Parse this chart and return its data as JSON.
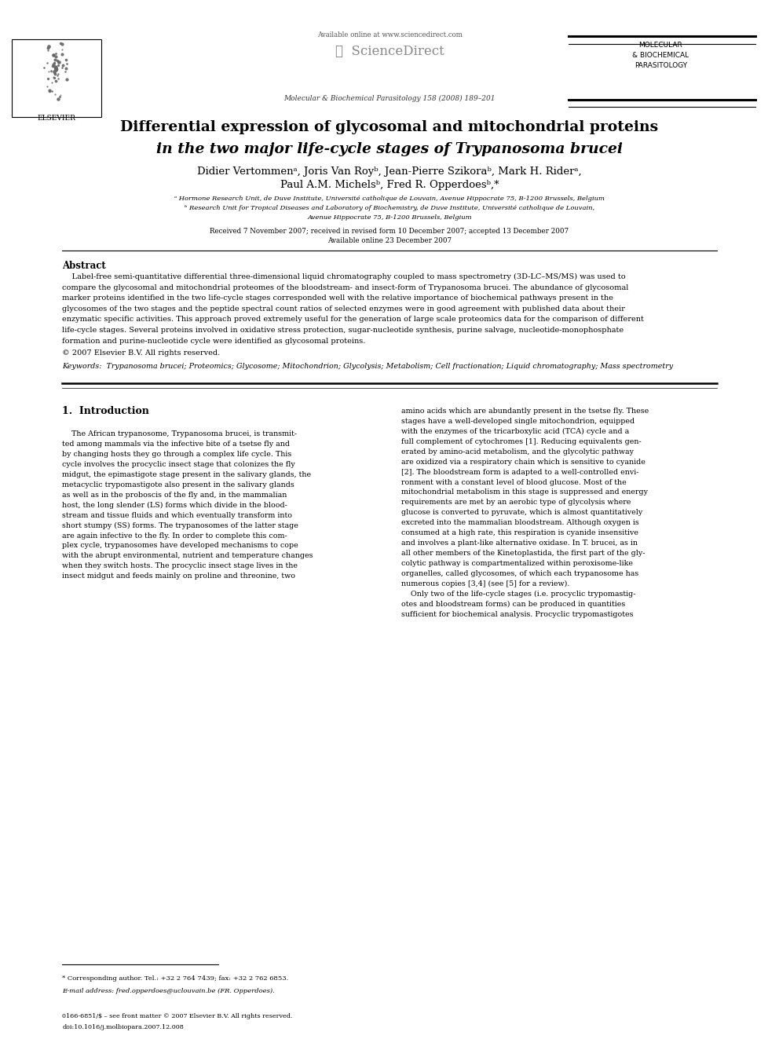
{
  "background_color": "#ffffff",
  "page_width": 9.92,
  "page_height": 13.23,
  "header": {
    "available_online": "Available online at www.sciencedirect.com",
    "sciencedirect": "❧  ScienceDirect",
    "journal_name": "Molecular & Biochemical Parasitology 158 (2008) 189–201",
    "elsevier": "ELSEVIER",
    "mbp_line1": "MOLECULAR",
    "mbp_line2": "& BIOCHEMICAL",
    "mbp_line3": "PARASITOLOGY"
  },
  "title_line1": "Differential expression of glycosomal and mitochondrial proteins",
  "title_line2_normal": "in the two major life-cycle stages of ",
  "title_line2_italic": "Trypanosoma brucei",
  "authors_line1": "Didier Vertommenᵃ, Joris Van Royᵇ, Jean-Pierre Szikoraᵇ, Mark H. Riderᵃ,",
  "authors_line2": "Paul A.M. Michelsᵇ, Fred R. Opperdoesᵇ,*",
  "affil_a": "ᵃ Hormone Research Unit, de Duve Institute, Université catholique de Louvain, Avenue Hippocrate 75, B-1200 Brussels, Belgium",
  "affil_b_line1": "ᵇ Research Unit for Tropical Diseases and Laboratory of Biochemistry, de Duve Institute, Université catholique de Louvain,",
  "affil_b_line2": "Avenue Hippocrate 75, B-1200 Brussels, Belgium",
  "received": "Received 7 November 2007; received in revised form 10 December 2007; accepted 13 December 2007",
  "available_online2": "Available online 23 December 2007",
  "abstract_title": "Abstract",
  "abstract_lines": [
    "    Label-free semi-quantitative differential three-dimensional liquid chromatography coupled to mass spectrometry (3D-LC–MS/MS) was used to",
    "compare the glycosomal and mitochondrial proteomes of the bloodstream- and insect-form of Trypanosoma brucei. The abundance of glycosomal",
    "marker proteins identified in the two life-cycle stages corresponded well with the relative importance of biochemical pathways present in the",
    "glycosomes of the two stages and the peptide spectral count ratios of selected enzymes were in good agreement with published data about their",
    "enzymatic specific activities. This approach proved extremely useful for the generation of large scale proteomics data for the comparison of different",
    "life-cycle stages. Several proteins involved in oxidative stress protection, sugar-nucleotide synthesis, purine salvage, nucleotide-monophosphate",
    "formation and purine-nucleotide cycle were identified as glycosomal proteins."
  ],
  "copyright": "© 2007 Elsevier B.V. All rights reserved.",
  "keywords": "Keywords:  Trypanosoma brucei; Proteomics; Glycosome; Mitochondrion; Glycolysis; Metabolism; Cell fractionation; Liquid chromatography; Mass spectrometry",
  "section1_title": "1.  Introduction",
  "col1_lines": [
    "    The African trypanosome, Trypanosoma brucei, is transmit-",
    "ted among mammals via the infective bite of a tsetse fly and",
    "by changing hosts they go through a complex life cycle. This",
    "cycle involves the procyclic insect stage that colonizes the fly",
    "midgut, the epimastigote stage present in the salivary glands, the",
    "metacyclic trypomastigote also present in the salivary glands",
    "as well as in the proboscis of the fly and, in the mammalian",
    "host, the long slender (LS) forms which divide in the blood-",
    "stream and tissue fluids and which eventually transform into",
    "short stumpy (SS) forms. The trypanosomes of the latter stage",
    "are again infective to the fly. In order to complete this com-",
    "plex cycle, trypanosomes have developed mechanisms to cope",
    "with the abrupt environmental, nutrient and temperature changes",
    "when they switch hosts. The procyclic insect stage lives in the",
    "insect midgut and feeds mainly on proline and threonine, two"
  ],
  "col2_lines": [
    "amino acids which are abundantly present in the tsetse fly. These",
    "stages have a well-developed single mitochondrion, equipped",
    "with the enzymes of the tricarboxylic acid (TCA) cycle and a",
    "full complement of cytochromes [1]. Reducing equivalents gen-",
    "erated by amino-acid metabolism, and the glycolytic pathway",
    "are oxidized via a respiratory chain which is sensitive to cyanide",
    "[2]. The bloodstream form is adapted to a well-controlled envi-",
    "ronment with a constant level of blood glucose. Most of the",
    "mitochondrial metabolism in this stage is suppressed and energy",
    "requirements are met by an aerobic type of glycolysis where",
    "glucose is converted to pyruvate, which is almost quantitatively",
    "excreted into the mammalian bloodstream. Although oxygen is",
    "consumed at a high rate, this respiration is cyanide insensitive",
    "and involves a plant-like alternative oxidase. In T. brucei, as in",
    "all other members of the Kinetoplastida, the first part of the gly-",
    "colytic pathway is compartmentalized within peroxisome-like",
    "organelles, called glycosomes, of which each trypanosome has",
    "numerous copies [3,4] (see [5] for a review).",
    "    Only two of the life-cycle stages (i.e. procyclic trypomastig-",
    "otes and bloodstream forms) can be produced in quantities",
    "sufficient for biochemical analysis. Procyclic trypomastigotes"
  ],
  "footnote_star": "* Corresponding author. Tel.: +32 2 764 7439; fax: +32 2 762 6853.",
  "footnote_email": "E-mail address: fred.opperdoes@uclouvain.be (FR. Opperdoes).",
  "footnote_issn": "0166-6851/$ – see front matter © 2007 Elsevier B.V. All rights reserved.",
  "footnote_doi": "doi:10.1016/j.molbiopara.2007.12.008"
}
